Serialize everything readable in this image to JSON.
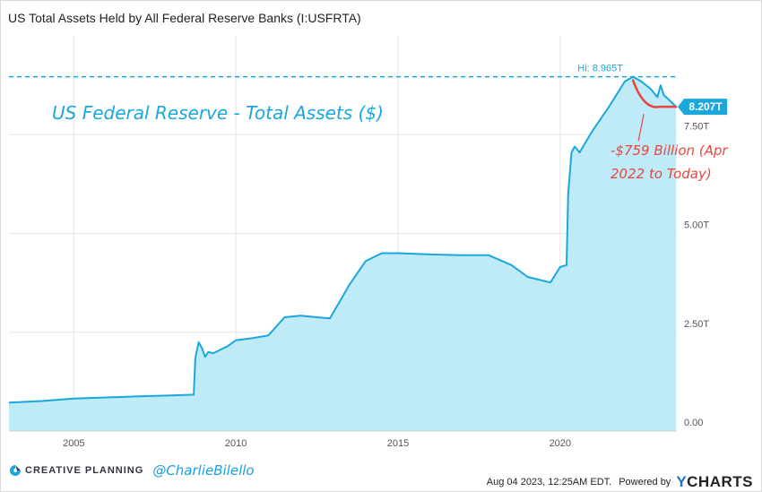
{
  "title": "US Total Assets Held by All Federal Reserve Banks (I:USFRTA)",
  "colors": {
    "line": "#1aa7dc",
    "fill": "#bfeaf7",
    "annotation_red": "#e8473f",
    "badge": "#1aa7dc"
  },
  "chart_data": {
    "type": "area",
    "title": "US Total Assets Held by All Federal Reserve Banks (I:USFRTA)",
    "xlabel": "",
    "ylabel": "",
    "xlim": [
      2003.0,
      2023.6
    ],
    "ylim": [
      0,
      10
    ],
    "x_ticks": [
      2005,
      2010,
      2015,
      2020
    ],
    "x_tick_labels": [
      "2005",
      "2010",
      "2015",
      "2020"
    ],
    "y_ticks": [
      0,
      2.5,
      5,
      7.5
    ],
    "y_tick_labels": [
      "0.00",
      "2.50T",
      "5.00T",
      "7.50T"
    ],
    "grid": true,
    "series": [
      {
        "values_unit": "trillions USD",
        "x": [
          2003.0,
          2004.0,
          2005.0,
          2006.0,
          2007.0,
          2008.0,
          2008.7,
          2008.75,
          2008.85,
          2008.95,
          2009.05,
          2009.15,
          2009.3,
          2009.5,
          2009.75,
          2010.0,
          2010.5,
          2011.0,
          2011.5,
          2012.0,
          2012.5,
          2012.9,
          2013.5,
          2014.0,
          2014.5,
          2015.0,
          2016.0,
          2017.0,
          2017.8,
          2018.5,
          2019.0,
          2019.7,
          2020.0,
          2020.2,
          2020.25,
          2020.35,
          2020.45,
          2020.6,
          2021.0,
          2021.5,
          2022.0,
          2022.25,
          2022.5,
          2022.8,
          2023.0,
          2023.1,
          2023.2,
          2023.4,
          2023.58
        ],
        "values": [
          0.72,
          0.76,
          0.82,
          0.85,
          0.88,
          0.9,
          0.92,
          1.85,
          2.25,
          2.1,
          1.88,
          2.0,
          1.97,
          2.05,
          2.15,
          2.3,
          2.35,
          2.42,
          2.88,
          2.92,
          2.88,
          2.85,
          3.7,
          4.3,
          4.5,
          4.5,
          4.47,
          4.45,
          4.45,
          4.2,
          3.9,
          3.76,
          4.15,
          4.2,
          6.0,
          7.05,
          7.2,
          7.05,
          7.6,
          8.2,
          8.85,
          8.965,
          8.85,
          8.65,
          8.45,
          8.75,
          8.5,
          8.35,
          8.207
        ]
      }
    ],
    "annotations": {
      "high_label": "Hi: 8.965T",
      "high_value": 8.965,
      "current_label": "8.207T",
      "current_value": 8.207,
      "overlay_title": "US Federal Reserve - Total Assets ($)",
      "decline_label_line1": "-$759 Billion (Apr",
      "decline_label_line2": "2022 to Today)"
    }
  },
  "footer": {
    "brand": "CREATIVE PLANNING",
    "handle": "@CharlieBilello",
    "timestamp": "Aug 04 2023, 12:25AM EDT.",
    "powered_by": "Powered by",
    "ycharts_y": "Y",
    "ycharts_rest": "CHARTS"
  }
}
